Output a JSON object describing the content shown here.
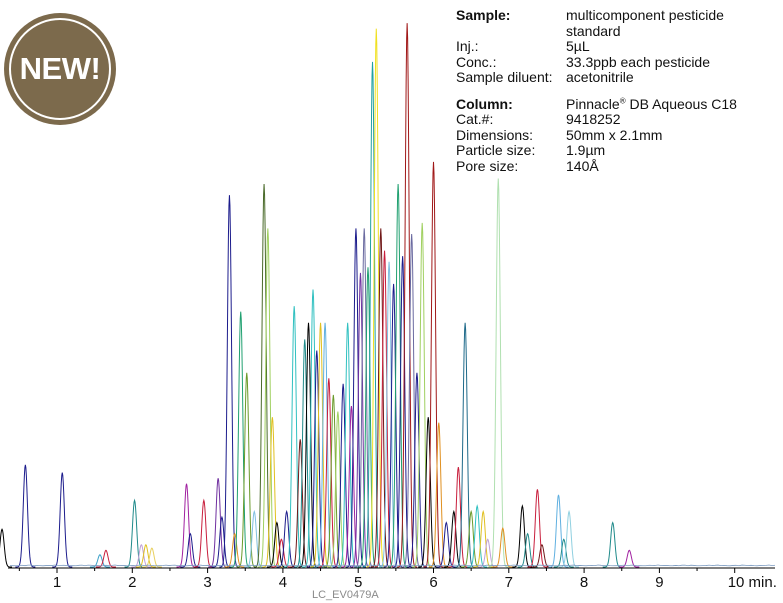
{
  "badge": {
    "text": "NEW!"
  },
  "info": {
    "sample_label": "Sample:",
    "sample_value": "multicomponent pesticide standard",
    "inj_label": "Inj.:",
    "inj_value": "5µL",
    "conc_label": "Conc.:",
    "conc_value": "33.3ppb each pesticide",
    "diluent_label": "Sample diluent:",
    "diluent_value": "acetonitrile",
    "column_label": "Column:",
    "column_value_pre": "Pinnacle",
    "column_value_reg": "®",
    "column_value_post": " DB Aqueous C18",
    "cat_label": "Cat.#:",
    "cat_value": "9418252",
    "dim_label": "Dimensions:",
    "dim_value": "50mm x 2.1mm",
    "particle_label": "Particle size:",
    "particle_value": "1.9µm",
    "pore_label": "Pore size:",
    "pore_value": "140Å"
  },
  "footer_code": "LC_EV0479A",
  "chart_data": {
    "type": "line",
    "xlabel": "min.",
    "xlim": [
      0.15,
      10.5
    ],
    "ylim": [
      0,
      100
    ],
    "x_ticks": [
      1,
      2,
      3,
      4,
      5,
      6,
      7,
      8,
      9,
      10
    ],
    "x_tick_labels": [
      "1",
      "2",
      "3",
      "4",
      "5",
      "6",
      "7",
      "8",
      "9",
      "10 min."
    ],
    "y_axis_visible": false,
    "grid": false,
    "legend": "none",
    "peaks": [
      {
        "rt": 0.27,
        "h": 6.8,
        "color": "#000000"
      },
      {
        "rt": 0.58,
        "h": 18.4,
        "color": "#1c1c8c"
      },
      {
        "rt": 1.07,
        "h": 17.0,
        "color": "#1c1c8c"
      },
      {
        "rt": 1.57,
        "h": 2.2,
        "color": "#3aa0c8"
      },
      {
        "rt": 1.65,
        "h": 3.0,
        "color": "#c81e3c"
      },
      {
        "rt": 2.03,
        "h": 12.0,
        "color": "#1f8a8a"
      },
      {
        "rt": 2.12,
        "h": 4.0,
        "color": "#c0a0d8"
      },
      {
        "rt": 2.18,
        "h": 4.0,
        "color": "#e0c020"
      },
      {
        "rt": 2.26,
        "h": 3.4,
        "color": "#e8d060"
      },
      {
        "rt": 2.72,
        "h": 15.0,
        "color": "#a020a0"
      },
      {
        "rt": 2.77,
        "h": 6.0,
        "color": "#1c1c8c"
      },
      {
        "rt": 2.95,
        "h": 12.0,
        "color": "#c81e3c"
      },
      {
        "rt": 3.14,
        "h": 16.0,
        "color": "#7030a0"
      },
      {
        "rt": 3.19,
        "h": 9.0,
        "color": "#1c1c8c"
      },
      {
        "rt": 3.29,
        "h": 67.0,
        "color": "#1c1c8c"
      },
      {
        "rt": 3.36,
        "h": 6.0,
        "color": "#e09020"
      },
      {
        "rt": 3.44,
        "h": 46.0,
        "color": "#20a070"
      },
      {
        "rt": 3.52,
        "h": 35.0,
        "color": "#6a9a2a"
      },
      {
        "rt": 3.62,
        "h": 10.0,
        "color": "#80c0e0"
      },
      {
        "rt": 3.75,
        "h": 69.0,
        "color": "#4a6a2a"
      },
      {
        "rt": 3.8,
        "h": 61.0,
        "color": "#a0d060"
      },
      {
        "rt": 3.86,
        "h": 27.0,
        "color": "#e0c020"
      },
      {
        "rt": 3.92,
        "h": 8.0,
        "color": "#000000"
      },
      {
        "rt": 3.98,
        "h": 5.0,
        "color": "#c81e3c"
      },
      {
        "rt": 4.05,
        "h": 10.0,
        "color": "#1c1c8c"
      },
      {
        "rt": 4.15,
        "h": 47.0,
        "color": "#30c0c0"
      },
      {
        "rt": 4.23,
        "h": 23.0,
        "color": "#701818"
      },
      {
        "rt": 4.29,
        "h": 41.0,
        "color": "#1f8a8a"
      },
      {
        "rt": 4.34,
        "h": 44.0,
        "color": "#000000"
      },
      {
        "rt": 4.4,
        "h": 50.0,
        "color": "#30c0c0"
      },
      {
        "rt": 4.45,
        "h": 39.0,
        "color": "#1c1c8c"
      },
      {
        "rt": 4.5,
        "h": 44.0,
        "color": "#e0c020"
      },
      {
        "rt": 4.56,
        "h": 44.0,
        "color": "#60b0e0"
      },
      {
        "rt": 4.61,
        "h": 34.0,
        "color": "#c81e3c"
      },
      {
        "rt": 4.67,
        "h": 31.0,
        "color": "#6a9a2a"
      },
      {
        "rt": 4.73,
        "h": 28.0,
        "color": "#a0d060"
      },
      {
        "rt": 4.8,
        "h": 33.0,
        "color": "#1c1c8c"
      },
      {
        "rt": 4.86,
        "h": 44.0,
        "color": "#30c0c0"
      },
      {
        "rt": 4.91,
        "h": 29.0,
        "color": "#a020a0"
      },
      {
        "rt": 4.97,
        "h": 61.0,
        "color": "#1c1c8c"
      },
      {
        "rt": 5.03,
        "h": 53.0,
        "color": "#7030a0"
      },
      {
        "rt": 5.08,
        "h": 61.0,
        "color": "#6a6aa0"
      },
      {
        "rt": 5.13,
        "h": 54.0,
        "color": "#20a070"
      },
      {
        "rt": 5.19,
        "h": 91.0,
        "color": "#20a0a0"
      },
      {
        "rt": 5.24,
        "h": 97.0,
        "color": "#f0e020"
      },
      {
        "rt": 5.3,
        "h": 61.0,
        "color": "#701818"
      },
      {
        "rt": 5.35,
        "h": 57.0,
        "color": "#c81e3c"
      },
      {
        "rt": 5.41,
        "h": 55.0,
        "color": "#80c0e0"
      },
      {
        "rt": 5.47,
        "h": 51.0,
        "color": "#1c1c8c"
      },
      {
        "rt": 5.53,
        "h": 69.0,
        "color": "#20a070"
      },
      {
        "rt": 5.59,
        "h": 56.0,
        "color": "#1c1c8c"
      },
      {
        "rt": 5.65,
        "h": 98.0,
        "color": "#a01818"
      },
      {
        "rt": 5.71,
        "h": 60.0,
        "color": "#6a6aa0"
      },
      {
        "rt": 5.78,
        "h": 35.0,
        "color": "#1c1c8c"
      },
      {
        "rt": 5.85,
        "h": 62.0,
        "color": "#a0d060"
      },
      {
        "rt": 5.93,
        "h": 27.0,
        "color": "#000000"
      },
      {
        "rt": 6.0,
        "h": 73.0,
        "color": "#a01818"
      },
      {
        "rt": 6.07,
        "h": 26.0,
        "color": "#e09020"
      },
      {
        "rt": 6.17,
        "h": 8.0,
        "color": "#1c1c8c"
      },
      {
        "rt": 6.27,
        "h": 10.0,
        "color": "#000000"
      },
      {
        "rt": 6.33,
        "h": 18.0,
        "color": "#c81e3c"
      },
      {
        "rt": 6.42,
        "h": 44.0,
        "color": "#1f6a8a"
      },
      {
        "rt": 6.5,
        "h": 10.0,
        "color": "#6a9a2a"
      },
      {
        "rt": 6.58,
        "h": 11.0,
        "color": "#30c0c0"
      },
      {
        "rt": 6.66,
        "h": 10.0,
        "color": "#e0c020"
      },
      {
        "rt": 6.72,
        "h": 5.0,
        "color": "#c0a0d8"
      },
      {
        "rt": 6.86,
        "h": 70.0,
        "color": "#b0e0b0"
      },
      {
        "rt": 6.92,
        "h": 7.0,
        "color": "#e09020"
      },
      {
        "rt": 7.18,
        "h": 11.0,
        "color": "#000000"
      },
      {
        "rt": 7.25,
        "h": 6.0,
        "color": "#1f8a8a"
      },
      {
        "rt": 7.38,
        "h": 14.0,
        "color": "#c81e3c"
      },
      {
        "rt": 7.44,
        "h": 4.0,
        "color": "#701818"
      },
      {
        "rt": 7.66,
        "h": 13.0,
        "color": "#60b0e0"
      },
      {
        "rt": 7.73,
        "h": 5.0,
        "color": "#1f8a8a"
      },
      {
        "rt": 7.8,
        "h": 10.0,
        "color": "#90d0e0"
      },
      {
        "rt": 8.38,
        "h": 8.0,
        "color": "#1f8a8a"
      },
      {
        "rt": 8.6,
        "h": 3.0,
        "color": "#a020a0"
      }
    ]
  }
}
